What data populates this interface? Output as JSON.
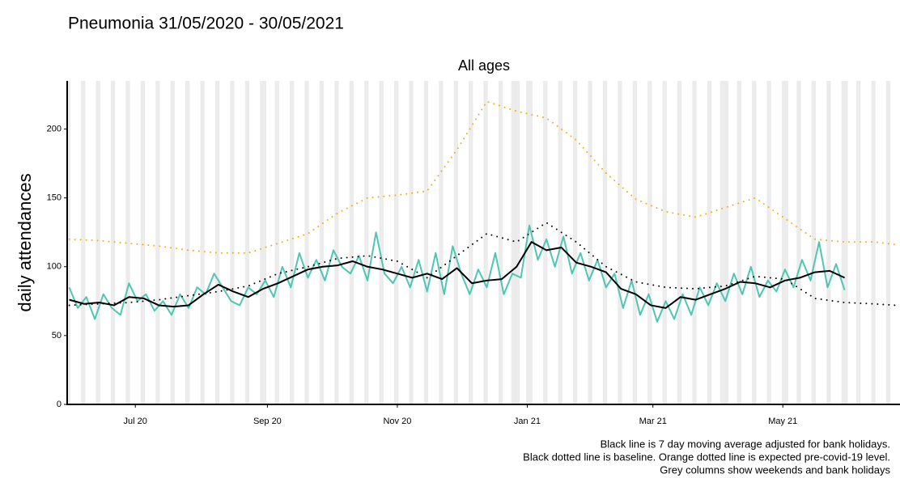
{
  "chart_data": {
    "type": "line",
    "title": "Pneumonia 31/05/2020 - 30/05/2021",
    "subtitle": "All ages",
    "y_label": "daily attendances",
    "notes": [
      "Black line is 7 day moving average adjusted for bank holidays.",
      "Black dotted line is baseline. Orange dotted line is expected pre-covid-19 level.",
      "Grey columns show weekends and bank holidays"
    ],
    "xlim": [
      -1,
      390
    ],
    "ylim": [
      0,
      235
    ],
    "yticks": [
      0,
      50,
      100,
      150,
      200
    ],
    "xticks": [
      {
        "value": 31,
        "label": "Jul 20"
      },
      {
        "value": 93,
        "label": "Sep 20"
      },
      {
        "value": 154,
        "label": "Nov 20"
      },
      {
        "value": 215,
        "label": "Jan 21"
      },
      {
        "value": 274,
        "label": "Mar 21"
      },
      {
        "value": 335,
        "label": "May 21"
      }
    ],
    "shade_color": "#ebebeb",
    "shaded_days": [
      0,
      6,
      7,
      13,
      14,
      20,
      21,
      27,
      28,
      34,
      35,
      41,
      42,
      48,
      49,
      55,
      56,
      62,
      63,
      69,
      70,
      76,
      77,
      83,
      84,
      90,
      91,
      92,
      97,
      98,
      104,
      105,
      111,
      112,
      118,
      119,
      125,
      126,
      132,
      133,
      139,
      140,
      146,
      147,
      153,
      154,
      160,
      161,
      167,
      168,
      174,
      175,
      181,
      182,
      188,
      189,
      195,
      196,
      202,
      203,
      208,
      209,
      210,
      211,
      215,
      216,
      217,
      223,
      224,
      230,
      231,
      237,
      238,
      244,
      245,
      251,
      252,
      258,
      259,
      265,
      266,
      272,
      273,
      279,
      280,
      286,
      287,
      293,
      294,
      300,
      301,
      306,
      307,
      308,
      309,
      314,
      315,
      321,
      322,
      328,
      329,
      335,
      336,
      337,
      342,
      343,
      349,
      350,
      356,
      357,
      363,
      364,
      365,
      370,
      371,
      377,
      378,
      384,
      385
    ],
    "series": [
      {
        "color": "#4fc6b3",
        "style": "solid",
        "width": 2,
        "x": [
          0,
          4,
          8,
          12,
          16,
          20,
          24,
          28,
          32,
          36,
          40,
          44,
          48,
          52,
          56,
          60,
          64,
          68,
          72,
          76,
          80,
          84,
          88,
          92,
          96,
          100,
          104,
          108,
          112,
          116,
          120,
          124,
          128,
          132,
          136,
          140,
          144,
          148,
          152,
          156,
          160,
          164,
          168,
          172,
          176,
          180,
          184,
          188,
          192,
          196,
          200,
          204,
          208,
          212,
          216,
          220,
          224,
          228,
          232,
          236,
          240,
          244,
          248,
          252,
          256,
          260,
          264,
          268,
          272,
          276,
          280,
          284,
          288,
          292,
          296,
          300,
          304,
          308,
          312,
          316,
          320,
          324,
          328,
          332,
          336,
          340,
          344,
          348,
          352,
          356,
          360,
          364
        ],
        "values": [
          85,
          70,
          78,
          62,
          80,
          70,
          65,
          88,
          75,
          80,
          68,
          75,
          65,
          80,
          70,
          85,
          80,
          95,
          85,
          75,
          72,
          85,
          80,
          90,
          78,
          100,
          85,
          110,
          92,
          105,
          90,
          112,
          100,
          95,
          108,
          90,
          125,
          95,
          88,
          100,
          85,
          105,
          82,
          110,
          80,
          115,
          95,
          80,
          98,
          85,
          110,
          80,
          95,
          92,
          130,
          105,
          120,
          100,
          122,
          95,
          110,
          90,
          105,
          85,
          95,
          70,
          90,
          65,
          80,
          60,
          75,
          62,
          80,
          65,
          85,
          72,
          88,
          75,
          95,
          80,
          100,
          78,
          90,
          82,
          98,
          85,
          105,
          90,
          118,
          85,
          102,
          83
        ]
      },
      {
        "color": "#ffa500",
        "style": "dotted",
        "width": 2,
        "x": [
          0,
          14,
          28,
          42,
          56,
          70,
          84,
          98,
          112,
          126,
          140,
          154,
          168,
          182,
          196,
          210,
          224,
          238,
          252,
          266,
          280,
          294,
          308,
          322,
          336,
          350,
          364,
          378,
          388
        ],
        "values": [
          120,
          119,
          117,
          115,
          112,
          110,
          110,
          117,
          124,
          139,
          150,
          152,
          155,
          185,
          220,
          213,
          208,
          192,
          168,
          149,
          140,
          136,
          143,
          150,
          135,
          120,
          118,
          118,
          116
        ]
      },
      {
        "color": "#000000",
        "style": "dotted",
        "width": 2,
        "x": [
          0,
          14,
          28,
          42,
          56,
          70,
          84,
          98,
          112,
          126,
          140,
          154,
          168,
          182,
          196,
          210,
          224,
          238,
          252,
          266,
          280,
          294,
          308,
          322,
          336,
          350,
          364,
          378,
          388
        ],
        "values": [
          72,
          73,
          74,
          76,
          79,
          82,
          86,
          95,
          100,
          106,
          108,
          104,
          92,
          108,
          124,
          118,
          132,
          118,
          100,
          89,
          85,
          84,
          86,
          93,
          91,
          77,
          74,
          73,
          72
        ]
      },
      {
        "color": "#000000",
        "style": "solid",
        "width": 2,
        "x": [
          0,
          7,
          14,
          21,
          28,
          35,
          42,
          49,
          56,
          63,
          70,
          77,
          84,
          91,
          98,
          105,
          112,
          119,
          126,
          133,
          140,
          147,
          154,
          161,
          168,
          175,
          182,
          189,
          196,
          203,
          210,
          217,
          224,
          231,
          238,
          245,
          252,
          259,
          266,
          273,
          280,
          287,
          294,
          301,
          308,
          315,
          322,
          329,
          336,
          343,
          350,
          357,
          364
        ],
        "values": [
          76,
          73,
          74,
          72,
          78,
          77,
          72,
          71,
          72,
          80,
          87,
          82,
          78,
          84,
          88,
          93,
          98,
          100,
          101,
          104,
          100,
          98,
          95,
          92,
          95,
          91,
          99,
          88,
          90,
          91,
          100,
          118,
          112,
          114,
          103,
          100,
          96,
          84,
          80,
          72,
          70,
          78,
          76,
          80,
          84,
          89,
          88,
          85,
          90,
          92,
          96,
          97,
          92
        ]
      }
    ]
  }
}
